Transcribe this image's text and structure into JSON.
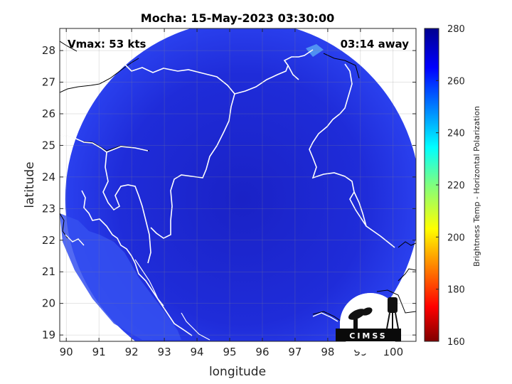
{
  "chart_data": {
    "type": "heatmap",
    "title": "Mocha: 15-May-2023 03:30:00",
    "xlabel": "longitude",
    "ylabel": "latitude",
    "xlim": [
      89.8,
      100.7
    ],
    "ylim": [
      18.8,
      28.7
    ],
    "xticks": [
      90,
      91,
      92,
      93,
      94,
      95,
      96,
      97,
      98,
      99,
      100
    ],
    "yticks": [
      19,
      20,
      21,
      22,
      23,
      24,
      25,
      26,
      27,
      28
    ],
    "grid": true,
    "annotations": {
      "vmax": "Vmax: 53 kts",
      "time_away": "03:14 away"
    },
    "colorbar": {
      "label": "Brightness Temp - Horizontal Polarization",
      "min": 160,
      "max": 280,
      "ticks": [
        160,
        180,
        200,
        220,
        240,
        260,
        280
      ],
      "colormap": "jet"
    },
    "swath": {
      "shape": "circle",
      "center_lon": 95.4,
      "center_lat": 23.3,
      "radius_lon": 5.43,
      "radius_lat": 5.65,
      "dominant_value": 268
    },
    "logo": "CIMSS"
  },
  "colors": {
    "ocean_fill": "#2a36e8",
    "land_fill": "#0c1cb8",
    "coast_line": "#ffffff",
    "border_line": "#000000"
  }
}
